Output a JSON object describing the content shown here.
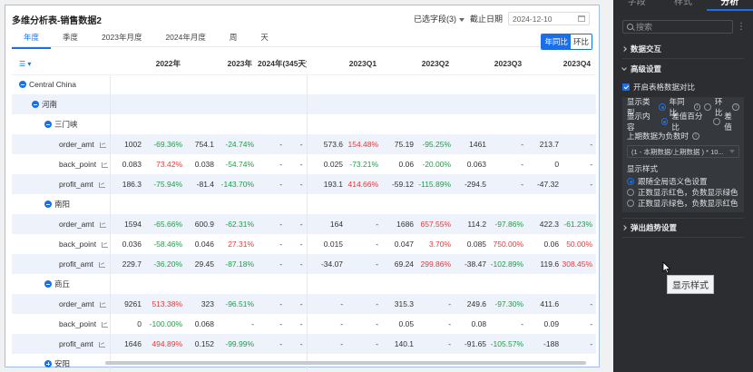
{
  "title": "多维分析表-销售数据2",
  "header": {
    "selected_fields": "已选字段(3)",
    "cutoff_label": "截止日期",
    "cutoff_value": "2024-12-10"
  },
  "tabs": [
    "年度",
    "季度",
    "2023年月度",
    "2024年月度",
    "周",
    "天"
  ],
  "compare": {
    "yoy": "年同比",
    "mom": "环比"
  },
  "table": {
    "columns": [
      "2022年",
      "2023年",
      "2024年(345天)",
      "2023Q1",
      "2023Q2",
      "2023Q3",
      "2023Q4"
    ],
    "groups": [
      {
        "name": "Central China",
        "level": 0,
        "icon": "minus"
      },
      {
        "name": "河南",
        "level": 1,
        "icon": "minus"
      },
      {
        "name": "三门峡",
        "level": 2,
        "icon": "minus"
      }
    ],
    "rows": [
      {
        "type": "group",
        "name": "Central China",
        "level": 0
      },
      {
        "type": "group",
        "name": "河南",
        "level": 1
      },
      {
        "type": "group",
        "name": "三门峡",
        "level": 2
      },
      {
        "type": "data",
        "name": "order_amt",
        "cells": [
          "1002",
          "-69.36%",
          "754.1",
          "-24.74%",
          "-",
          "-",
          "573.6",
          "154.48%",
          "75.19",
          "-95.25%",
          "1461",
          "-",
          "213.7",
          "-"
        ]
      },
      {
        "type": "data",
        "name": "back_point",
        "cells": [
          "0.083",
          "73.42%",
          "0.038",
          "-54.74%",
          "-",
          "-",
          "0.025",
          "-73.21%",
          "0.06",
          "-20.00%",
          "0.063",
          "-",
          "0",
          "-"
        ]
      },
      {
        "type": "data",
        "name": "profit_amt",
        "cells": [
          "186.3",
          "-75.94%",
          "-81.4",
          "-143.70%",
          "-",
          "-",
          "193.1",
          "414.66%",
          "-59.12",
          "-115.89%",
          "-294.5",
          "-",
          "-47.32",
          "-"
        ]
      },
      {
        "type": "group",
        "name": "南阳",
        "level": 2
      },
      {
        "type": "data",
        "name": "order_amt",
        "cells": [
          "1594",
          "-65.66%",
          "600.9",
          "-62.31%",
          "-",
          "-",
          "164",
          "-",
          "1686",
          "657.55%",
          "114.2",
          "-97.86%",
          "422.3",
          "-61.23%"
        ]
      },
      {
        "type": "data",
        "name": "back_point",
        "cells": [
          "0.036",
          "-58.46%",
          "0.046",
          "27.31%",
          "-",
          "-",
          "0.015",
          "-",
          "0.047",
          "3.70%",
          "0.085",
          "750.00%",
          "0.06",
          "50.00%"
        ]
      },
      {
        "type": "data",
        "name": "profit_amt",
        "cells": [
          "229.7",
          "-36.20%",
          "29.45",
          "-87.18%",
          "-",
          "-",
          "-34.07",
          "-",
          "69.24",
          "299.86%",
          "-38.47",
          "-102.89%",
          "119.6",
          "308.45%"
        ]
      },
      {
        "type": "group",
        "name": "商丘",
        "level": 2
      },
      {
        "type": "data",
        "name": "order_amt",
        "cells": [
          "9261",
          "513.38%",
          "323",
          "-96.51%",
          "-",
          "-",
          "-",
          "-",
          "315.3",
          "-",
          "249.6",
          "-97.30%",
          "411.6",
          "-"
        ]
      },
      {
        "type": "data",
        "name": "back_point",
        "cells": [
          "0",
          "-100.00%",
          "0.068",
          "-",
          "-",
          "-",
          "-",
          "-",
          "0.05",
          "-",
          "0.08",
          "-",
          "0.09",
          "-"
        ]
      },
      {
        "type": "data",
        "name": "profit_amt",
        "cells": [
          "1646",
          "494.89%",
          "0.152",
          "-99.99%",
          "-",
          "-",
          "-",
          "-",
          "140.1",
          "-",
          "-91.65",
          "-105.57%",
          "-188",
          "-"
        ]
      },
      {
        "type": "group",
        "name": "安阳",
        "level": 2,
        "icon": "plus"
      }
    ]
  },
  "panel": {
    "tabs": [
      "字段",
      "样式",
      "分析"
    ],
    "search_placeholder": "搜索",
    "data_interaction": "数据交互",
    "advanced": "高级设置",
    "enable_compare": "开启表格数据对比",
    "display_type": "显示类型",
    "type_yoy": "年同比",
    "type_mom": "环比",
    "display_content": "显示内容",
    "content_pct": "差值百分比",
    "content_diff": "差值",
    "negative_label": "上期数据为负数时",
    "negative_value": "(1 - 本期数据/上期数据 ) * 10...",
    "display_style": "显示样式",
    "style_opts": [
      "跟随全局语义色设置",
      "正数显示红色，负数显示绿色",
      "正数显示绿色，负数显示红色"
    ],
    "trend_popup": "弹出趋势设置",
    "tooltip": "显示样式"
  }
}
